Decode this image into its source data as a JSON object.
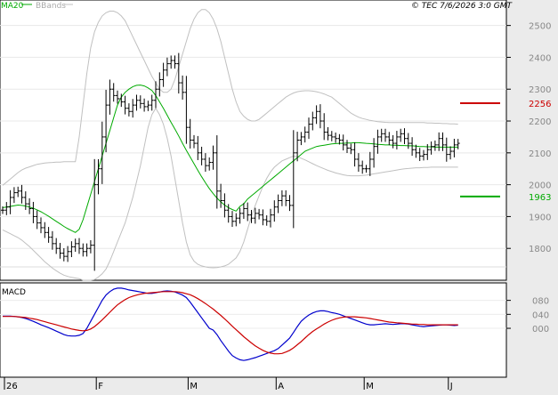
{
  "legend": {
    "ma_label": "MA20",
    "bbands_label": "BBands",
    "ma_color": "#00aa00",
    "bbands_color": "#c0c0c0"
  },
  "copyright": "© TEC 7/6/2026 3:0 GMT",
  "macd_label": "MACD",
  "colors": {
    "price": "#000000",
    "macd": "#0000cc",
    "signal": "#cc0000",
    "resistance": "#cc0000",
    "support": "#00aa00",
    "panel_bg": "#ffffff",
    "page_bg": "#ebebeb"
  },
  "chart_data": [
    {
      "type": "ohlc",
      "ylim": [
        1700,
        2580
      ],
      "y_ticks": [
        1800,
        1900,
        2000,
        2100,
        2200,
        2300,
        2400,
        2500
      ],
      "y_tick_labels": [
        "1800",
        "1900",
        "2000",
        "2100",
        "2200",
        "2300",
        "2400",
        "2500"
      ],
      "x_month_labels": [
        {
          "label": "26",
          "index": 0
        },
        {
          "label": "F",
          "index": 24
        },
        {
          "label": "M",
          "index": 48
        },
        {
          "label": "A",
          "index": 71
        },
        {
          "label": "M",
          "index": 94
        },
        {
          "label": "J",
          "index": 116
        }
      ],
      "levels": [
        {
          "name": "resistance",
          "value": 2256,
          "label": "2256"
        },
        {
          "name": "support",
          "value": 1963,
          "label": "1963"
        }
      ],
      "series": [
        {
          "name": "price",
          "close": [
            1920,
            1930,
            1960,
            1975,
            1980,
            1960,
            1940,
            1925,
            1900,
            1880,
            1865,
            1850,
            1835,
            1815,
            1800,
            1785,
            1775,
            1790,
            1805,
            1815,
            1800,
            1790,
            1800,
            1810,
            2000,
            2050,
            2150,
            2250,
            2300,
            2280,
            2270,
            2260,
            2240,
            2230,
            2250,
            2265,
            2255,
            2245,
            2250,
            2265,
            2300,
            2330,
            2360,
            2380,
            2390,
            2380,
            2320,
            2290,
            2180,
            2140,
            2130,
            2100,
            2080,
            2060,
            2070,
            2100,
            1980,
            1950,
            1920,
            1900,
            1885,
            1895,
            1910,
            1925,
            1905,
            1895,
            1910,
            1905,
            1890,
            1885,
            1905,
            1930,
            1950,
            1965,
            1950,
            1935,
            2100,
            2140,
            2150,
            2165,
            2190,
            2210,
            2230,
            2200,
            2165,
            2155,
            2150,
            2145,
            2140,
            2125,
            2115,
            2110,
            2080,
            2060,
            2050,
            2050,
            2080,
            2120,
            2150,
            2160,
            2150,
            2140,
            2130,
            2150,
            2160,
            2145,
            2130,
            2110,
            2100,
            2090,
            2095,
            2110,
            2120,
            2125,
            2145,
            2125,
            2095,
            2105,
            2125,
            2130
          ]
        },
        {
          "name": "MA20",
          "values": [
            1928,
            1930,
            1932,
            1934,
            1936,
            1935,
            1933,
            1930,
            1926,
            1921,
            1915,
            1908,
            1901,
            1893,
            1885,
            1877,
            1869,
            1862,
            1856,
            1850,
            1860,
            1890,
            1930,
            1970,
            2010,
            2050,
            2090,
            2130,
            2170,
            2210,
            2250,
            2275,
            2290,
            2300,
            2308,
            2312,
            2313,
            2310,
            2304,
            2296,
            2280,
            2260,
            2240,
            2218,
            2196,
            2175,
            2153,
            2130,
            2108,
            2087,
            2066,
            2045,
            2025,
            2006,
            1988,
            1972,
            1958,
            1946,
            1936,
            1928,
            1922,
            1917,
            1932,
            1940,
            1955,
            1965,
            1975,
            1985,
            1995,
            2005,
            2015,
            2025,
            2035,
            2045,
            2055,
            2065,
            2075,
            2085,
            2095,
            2105,
            2110,
            2115,
            2120,
            2122,
            2124,
            2126,
            2128,
            2129,
            2130,
            2130,
            2131,
            2131,
            2132,
            2132,
            2131,
            2130,
            2129,
            2128,
            2127,
            2126,
            2125,
            2125,
            2124,
            2124,
            2123,
            2123,
            2122,
            2122,
            2121,
            2120,
            2120,
            2119,
            2119,
            2118,
            2118,
            2118,
            2118,
            2118,
            2118,
            2118
          ]
        },
        {
          "name": "BBands-upper",
          "values": [
            1998,
            2008,
            2018,
            2028,
            2038,
            2046,
            2052,
            2056,
            2060,
            2064,
            2066,
            2068,
            2069,
            2070,
            2071,
            2071,
            2072,
            2072,
            2072,
            2072,
            2150,
            2250,
            2350,
            2430,
            2480,
            2510,
            2530,
            2540,
            2545,
            2545,
            2540,
            2530,
            2515,
            2490,
            2465,
            2440,
            2415,
            2390,
            2365,
            2340,
            2320,
            2300,
            2290,
            2290,
            2300,
            2330,
            2370,
            2410,
            2450,
            2490,
            2520,
            2540,
            2550,
            2550,
            2540,
            2520,
            2490,
            2450,
            2400,
            2350,
            2300,
            2260,
            2230,
            2215,
            2205,
            2200,
            2200,
            2205,
            2215,
            2225,
            2235,
            2245,
            2255,
            2265,
            2275,
            2282,
            2288,
            2292,
            2294,
            2295,
            2295,
            2294,
            2292,
            2289,
            2285,
            2280,
            2275,
            2265,
            2255,
            2245,
            2235,
            2225,
            2218,
            2212,
            2208,
            2205,
            2202,
            2200,
            2198,
            2197,
            2196,
            2195,
            2195,
            2195,
            2195,
            2195,
            2195,
            2195,
            2195,
            2195,
            2195,
            2194,
            2194,
            2193,
            2193,
            2192,
            2192,
            2191,
            2191,
            2190
          ]
        },
        {
          "name": "BBands-lower",
          "values": [
            1858,
            1852,
            1846,
            1840,
            1834,
            1826,
            1816,
            1806,
            1794,
            1782,
            1770,
            1758,
            1748,
            1738,
            1730,
            1722,
            1716,
            1712,
            1709,
            1707,
            1705,
            1700,
            1700,
            1700,
            1702,
            1710,
            1720,
            1735,
            1760,
            1790,
            1820,
            1850,
            1880,
            1920,
            1960,
            2010,
            2060,
            2120,
            2180,
            2220,
            2240,
            2220,
            2190,
            2146,
            2090,
            2020,
            1950,
            1880,
            1820,
            1780,
            1760,
            1750,
            1745,
            1742,
            1740,
            1739,
            1740,
            1742,
            1745,
            1750,
            1760,
            1770,
            1790,
            1820,
            1860,
            1900,
            1935,
            1965,
            1995,
            2020,
            2040,
            2055,
            2065,
            2075,
            2080,
            2085,
            2090,
            2088,
            2083,
            2078,
            2072,
            2066,
            2060,
            2055,
            2050,
            2045,
            2041,
            2037,
            2034,
            2031,
            2029,
            2028,
            2028,
            2028,
            2029,
            2030,
            2032,
            2034,
            2036,
            2038,
            2040,
            2042,
            2044,
            2046,
            2048,
            2050,
            2051,
            2052,
            2053,
            2053,
            2054,
            2054,
            2055,
            2055,
            2055,
            2055,
            2055,
            2055,
            2055,
            2055
          ]
        }
      ]
    },
    {
      "type": "line",
      "title": "MACD",
      "ylim": [
        -140,
        130
      ],
      "y_ticks": [
        0,
        40,
        80
      ],
      "y_tick_labels": [
        "000",
        "040",
        "080"
      ],
      "series": [
        {
          "name": "MACD",
          "values": [
            35,
            35,
            35,
            34,
            33,
            31,
            28,
            24,
            20,
            15,
            10,
            6,
            2,
            -3,
            -8,
            -13,
            -18,
            -21,
            -22,
            -22,
            -20,
            -15,
            0,
            20,
            40,
            60,
            80,
            95,
            105,
            112,
            115,
            115,
            113,
            110,
            108,
            106,
            104,
            102,
            100,
            100,
            102,
            104,
            106,
            107,
            106,
            104,
            100,
            95,
            88,
            75,
            60,
            45,
            30,
            15,
            0,
            -5,
            -18,
            -35,
            -50,
            -65,
            -78,
            -85,
            -90,
            -92,
            -90,
            -87,
            -84,
            -80,
            -76,
            -72,
            -68,
            -64,
            -58,
            -48,
            -38,
            -28,
            -12,
            5,
            20,
            30,
            38,
            44,
            48,
            50,
            50,
            48,
            45,
            43,
            40,
            36,
            32,
            28,
            24,
            20,
            16,
            12,
            10,
            10,
            11,
            12,
            13,
            12,
            11,
            12,
            13,
            13,
            12,
            10,
            8,
            6,
            5,
            6,
            7,
            8,
            9,
            10,
            10,
            9,
            8,
            9
          ]
        },
        {
          "name": "Signal",
          "values": [
            34,
            34,
            34,
            34,
            33,
            32,
            31,
            29,
            27,
            25,
            22,
            19,
            16,
            13,
            10,
            7,
            4,
            1,
            -2,
            -4,
            -6,
            -7,
            -6,
            -2,
            5,
            14,
            24,
            35,
            46,
            57,
            67,
            75,
            82,
            88,
            92,
            95,
            98,
            100,
            101,
            102,
            103,
            104,
            105,
            105,
            105,
            105,
            104,
            102,
            99,
            96,
            91,
            85,
            78,
            71,
            63,
            55,
            46,
            37,
            27,
            17,
            6,
            -4,
            -14,
            -24,
            -33,
            -42,
            -50,
            -57,
            -63,
            -68,
            -71,
            -73,
            -73,
            -72,
            -68,
            -63,
            -56,
            -47,
            -38,
            -28,
            -18,
            -9,
            -2,
            5,
            12,
            18,
            23,
            27,
            30,
            32,
            33,
            33,
            33,
            32,
            31,
            30,
            28,
            26,
            24,
            22,
            20,
            18,
            17,
            16,
            15,
            14,
            13,
            12,
            12,
            11,
            11,
            10,
            10,
            10,
            10,
            10,
            10,
            10,
            10,
            10
          ]
        }
      ]
    }
  ]
}
